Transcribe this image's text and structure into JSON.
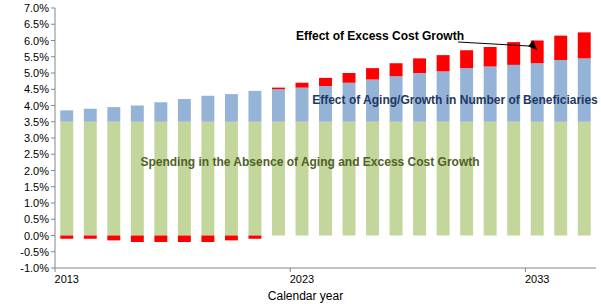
{
  "chart_data": {
    "type": "bar",
    "stacked": true,
    "x_label": "Calendar year",
    "categories": [
      "2013",
      null,
      null,
      null,
      null,
      null,
      null,
      null,
      null,
      null,
      "2023",
      null,
      null,
      null,
      null,
      null,
      null,
      null,
      null,
      null,
      "2033",
      null,
      null
    ],
    "series": [
      {
        "name": "Spending in the Absence of Aging and Excess Cost Growth",
        "color": "#c3d69b",
        "values": [
          3.5,
          3.5,
          3.5,
          3.5,
          3.5,
          3.5,
          3.5,
          3.5,
          3.5,
          3.5,
          3.5,
          3.5,
          3.5,
          3.5,
          3.5,
          3.5,
          3.5,
          3.5,
          3.5,
          3.5,
          3.5,
          3.5,
          3.5
        ]
      },
      {
        "name": "Effect of Aging/Growth in Number of Beneficiaries",
        "color": "#95b3d7",
        "values": [
          0.35,
          0.4,
          0.45,
          0.5,
          0.6,
          0.7,
          0.8,
          0.85,
          0.95,
          1.0,
          1.05,
          1.1,
          1.2,
          1.3,
          1.4,
          1.5,
          1.55,
          1.65,
          1.7,
          1.75,
          1.8,
          1.9,
          1.95
        ]
      },
      {
        "name": "Effect of Excess Cost Growth",
        "color": "#ff0000",
        "values": [
          -0.1,
          -0.1,
          -0.15,
          -0.2,
          -0.2,
          -0.2,
          -0.2,
          -0.15,
          -0.1,
          0.05,
          0.15,
          0.25,
          0.3,
          0.35,
          0.4,
          0.45,
          0.5,
          0.55,
          0.6,
          0.7,
          0.7,
          0.75,
          0.8
        ]
      }
    ],
    "ylim": [
      -1,
      7
    ],
    "yticks": [
      {
        "value": -1,
        "label": "-1.0%"
      },
      {
        "value": -0.5,
        "label": "-0.5%"
      },
      {
        "value": 0,
        "label": "0.0%"
      },
      {
        "value": 0.5,
        "label": "0.5%"
      },
      {
        "value": 1,
        "label": "1.0%"
      },
      {
        "value": 1.5,
        "label": "1.5%"
      },
      {
        "value": 2,
        "label": "2.0%"
      },
      {
        "value": 2.5,
        "label": "2.5%"
      },
      {
        "value": 3,
        "label": "3.0%"
      },
      {
        "value": 3.5,
        "label": "3.5%"
      },
      {
        "value": 4,
        "label": "4.0%"
      },
      {
        "value": 4.5,
        "label": "4.5%"
      },
      {
        "value": 5,
        "label": "5.0%"
      },
      {
        "value": 5.5,
        "label": "5.5%"
      },
      {
        "value": 6,
        "label": "6.0%"
      },
      {
        "value": 6.5,
        "label": "6.5%"
      },
      {
        "value": 7,
        "label": "7.0%"
      }
    ],
    "grid": false
  }
}
